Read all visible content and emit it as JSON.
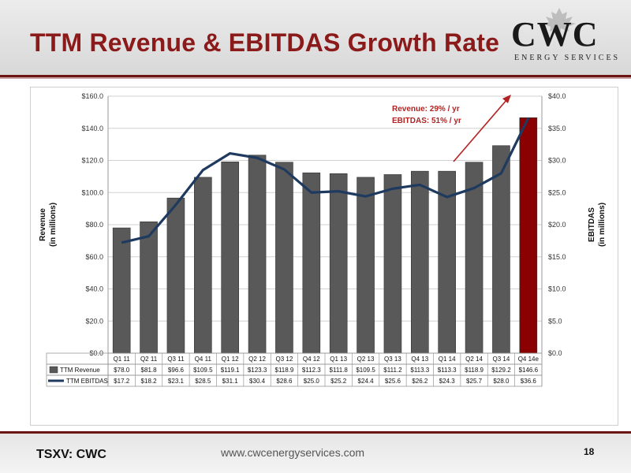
{
  "slide": {
    "title": "TTM Revenue & EBITDAS Growth Rate",
    "logo_main": "CWC",
    "logo_sub": "ENERGY SERVICES",
    "ticker": "TSXV: CWC",
    "url": "www.cwcenergyservices.com",
    "page": "18"
  },
  "colors": {
    "brand_red": "#8b1a1a",
    "bar_grey": "#595959",
    "highlight_bar": "#8b0000",
    "line_navy": "#1f3a5f",
    "arrow_red": "#b22222"
  },
  "chart_data": {
    "type": "bar",
    "categories": [
      "Q1 11",
      "Q2 11",
      "Q3 11",
      "Q4 11",
      "Q1 12",
      "Q2 12",
      "Q3 12",
      "Q4 12",
      "Q1 13",
      "Q2 13",
      "Q3 13",
      "Q4 13",
      "Q1 14",
      "Q2 14",
      "Q3 14",
      "Q4 14e"
    ],
    "series": [
      {
        "name": "TTM Revenue",
        "type": "bar",
        "axis": "left",
        "values": [
          78.0,
          81.8,
          96.6,
          109.5,
          119.1,
          123.3,
          118.9,
          112.3,
          111.8,
          109.5,
          111.2,
          113.3,
          113.3,
          118.9,
          129.2,
          146.6
        ],
        "labels": [
          "$78.0",
          "$81.8",
          "$96.6",
          "$109.5",
          "$119.1",
          "$123.3",
          "$118.9",
          "$112.3",
          "$111.8",
          "$109.5",
          "$111.2",
          "$113.3",
          "$113.3",
          "$118.9",
          "$129.2",
          "$146.6"
        ]
      },
      {
        "name": "TTM EBITDAS",
        "type": "line",
        "axis": "right",
        "values": [
          17.2,
          18.2,
          23.1,
          28.5,
          31.1,
          30.4,
          28.6,
          25.0,
          25.2,
          24.4,
          25.6,
          26.2,
          24.3,
          25.7,
          28.0,
          36.6
        ],
        "labels": [
          "$17.2",
          "$18.2",
          "$23.1",
          "$28.5",
          "$31.1",
          "$30.4",
          "$28.6",
          "$25.0",
          "$25.2",
          "$24.4",
          "$25.6",
          "$26.2",
          "$24.3",
          "$25.7",
          "$28.0",
          "$36.6"
        ]
      }
    ],
    "y_left": {
      "label_line1": "Revenue",
      "label_line2": "(in millions)",
      "lim": [
        0,
        160
      ],
      "ticks": [
        "$0.0",
        "$20.0",
        "$40.0",
        "$60.0",
        "$80.0",
        "$100.0",
        "$120.0",
        "$140.0",
        "$160.0"
      ]
    },
    "y_right": {
      "label_line1": "EBITDAS",
      "label_line2": "(in millions)",
      "lim": [
        0,
        40
      ],
      "ticks": [
        "$0.0",
        "$5.0",
        "$10.0",
        "$15.0",
        "$20.0",
        "$25.0",
        "$30.0",
        "$35.0",
        "$40.0"
      ]
    },
    "annotation": {
      "line1": "Revenue: 29% / yr",
      "line2": "EBITDAS: 51% / yr"
    },
    "grid": true,
    "legend": "data-table"
  }
}
